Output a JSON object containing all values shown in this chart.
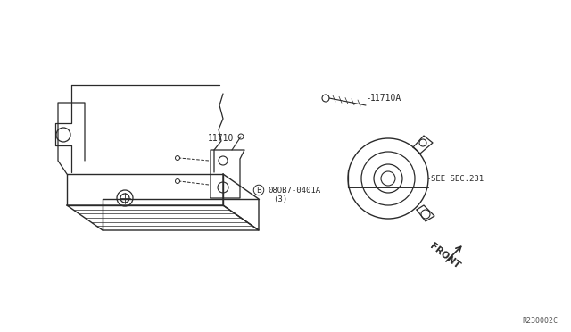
{
  "bg_color": "#ffffff",
  "line_color": "#2a2a2a",
  "text_color": "#2a2a2a",
  "ref_code": "R230002C",
  "labels": {
    "front": "FRONT",
    "bolt_label_1": "B",
    "bolt_label_2": "08OB7-0401A",
    "bolt_label_3": "(3)",
    "bracket_label": "11710",
    "bolt2_label": "11710A",
    "see_sec": "SEE SEC.231"
  },
  "figsize": [
    6.4,
    3.72
  ],
  "dpi": 100
}
